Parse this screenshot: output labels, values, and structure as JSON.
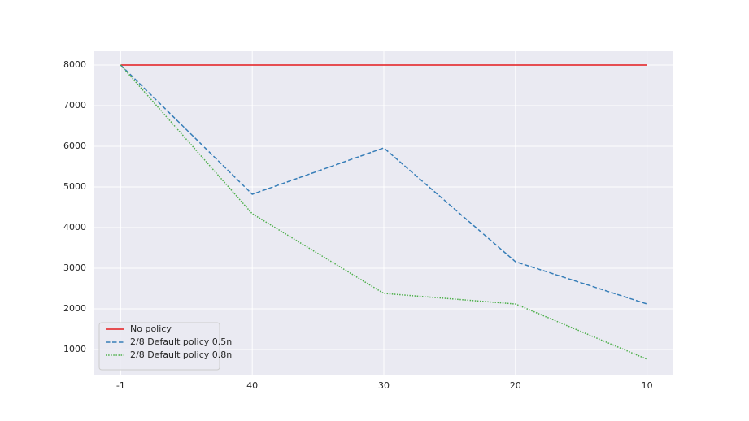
{
  "chart_data": {
    "type": "line",
    "categories": [
      "-1",
      "40",
      "30",
      "20",
      "10"
    ],
    "series": [
      {
        "name": "No policy",
        "color": "#e41a1c",
        "dash": "solid",
        "values": [
          8000,
          8000,
          8000,
          8000,
          8000
        ]
      },
      {
        "name": "2/8 Default policy 0.5n",
        "color": "#377eb8",
        "dash": "dashed",
        "values": [
          8000,
          4820,
          5960,
          3160,
          2120
        ]
      },
      {
        "name": "2/8 Default policy 0.8n",
        "color": "#4daf4a",
        "dash": "dotted",
        "values": [
          8000,
          4340,
          2380,
          2120,
          760
        ]
      }
    ],
    "ylim": [
      380,
      8340
    ],
    "yticks": [
      1000,
      2000,
      3000,
      4000,
      5000,
      6000,
      7000,
      8000
    ],
    "grid": true,
    "background": "#eaeaf2",
    "legend": "lower left"
  }
}
